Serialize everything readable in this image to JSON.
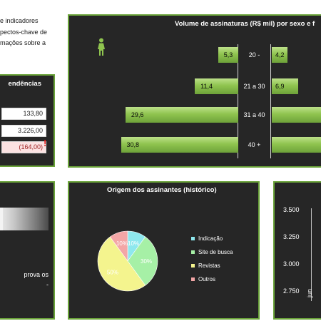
{
  "intro": {
    "lines": [
      "e indicadores",
      "pectos-chave de",
      "mações sobre a"
    ]
  },
  "trends": {
    "title": "endências",
    "rows": [
      {
        "value": "133,80",
        "negative": false
      },
      {
        "value": "3.226,00",
        "negative": false
      },
      {
        "value": "(164,00)",
        "negative": true
      }
    ],
    "flag": "!"
  },
  "volume": {
    "title": "Volume de assinaturas (R$ mil) por sexo e f",
    "person_icon": "female-person-icon",
    "bar_color": "#8fc44f",
    "rows": [
      {
        "age": "20 -",
        "left": 5.3,
        "left_label": "5,3",
        "right": 4.2,
        "right_label": "4,2"
      },
      {
        "age": "21 a 30",
        "left": 11.4,
        "left_label": "11,4",
        "right": 6.9,
        "right_label": "6,9"
      },
      {
        "age": "31 a 40",
        "left": 29.6,
        "left_label": "29,6",
        "right": null,
        "right_label": ""
      },
      {
        "age": "40 +",
        "left": 30.8,
        "left_label": "30,8",
        "right": null,
        "right_label": ""
      }
    ]
  },
  "gauge": {
    "text_lines": [
      "prova os",
      "-"
    ]
  },
  "chart_data": {
    "type": "pie",
    "title": "Origem dos assinantes (histórico)",
    "categories": [
      "Indicação",
      "Site de busca",
      "Revistas",
      "Outros"
    ],
    "values": [
      10,
      30,
      50,
      10
    ],
    "labels": [
      "10%",
      "30%",
      "50%",
      "10%"
    ],
    "colors": [
      "#8ee8ee",
      "#a6f0a6",
      "#f4f48e",
      "#f3a6a6"
    ],
    "legend": "right"
  },
  "line_panel": {
    "y_ticks": [
      "3.500",
      "3.250",
      "3.000",
      "2.750"
    ],
    "x_tick": "jun"
  }
}
